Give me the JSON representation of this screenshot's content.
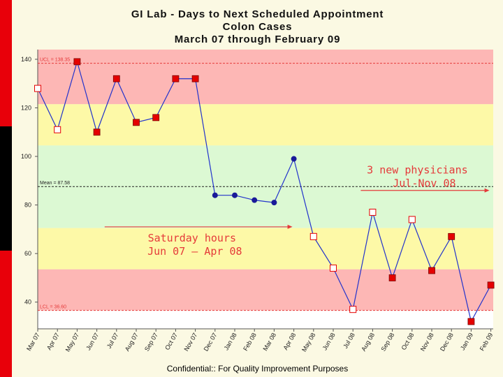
{
  "chart_data": {
    "type": "line",
    "title": "GI Lab - Days to Next Scheduled Appointment",
    "subtitle": "Colon Cases",
    "subtitle2": "March 07 through February 09",
    "footer": "Confidential::  For Quality Improvement Purposes",
    "xlabel": "",
    "ylabel": "",
    "ylim": [
      29,
      144
    ],
    "yticks": [
      "140",
      "120",
      "100",
      "80",
      "60",
      "40"
    ],
    "ytick_values": [
      140,
      120,
      100,
      80,
      60,
      40
    ],
    "categories": [
      "Mar 07",
      "Apr 07",
      "May 07",
      "Jun 07",
      "Jul 07",
      "Aug 07",
      "Sep 07",
      "Oct 07",
      "Nov 07",
      "Dec 07",
      "Jan 08",
      "Feb 08",
      "Mar 08",
      "Apr 08",
      "May 08",
      "Jun 08",
      "Jul 08",
      "Aug 08",
      "Sep 08",
      "Oct 08",
      "Nov 08",
      "Dec 08",
      "Jan 09",
      "Feb 09"
    ],
    "values": [
      128,
      111,
      139,
      110,
      132,
      114,
      116,
      132,
      132,
      84,
      84,
      82,
      81,
      99,
      67,
      54,
      37,
      77,
      50,
      74,
      53,
      67,
      32,
      47
    ],
    "markers": [
      "open",
      "open",
      "red",
      "red",
      "red",
      "red",
      "red",
      "red",
      "red",
      "dot",
      "dot",
      "dot",
      "dot",
      "dot",
      "open",
      "open",
      "open",
      "open",
      "red",
      "open",
      "red",
      "red",
      "red",
      "red"
    ],
    "zones": [
      {
        "from": 121.5,
        "to": 144,
        "color": "#fdb7b5"
      },
      {
        "from": 104.5,
        "to": 121.5,
        "color": "#fdf9a7"
      },
      {
        "from": 70.5,
        "to": 104.5,
        "color": "#dcf9d3"
      },
      {
        "from": 53.5,
        "to": 70.5,
        "color": "#fdf9a7"
      },
      {
        "from": 36.6,
        "to": 53.5,
        "color": "#fdb7b5"
      },
      {
        "from": 29,
        "to": 36.6,
        "color": "#ffffff"
      }
    ],
    "reference_lines": [
      {
        "label": "UCL = 138.35",
        "value": 138.35,
        "color": "#e53a3a"
      },
      {
        "label": "Mean = 87.58",
        "value": 87.58,
        "color": "#222222"
      },
      {
        "label": "LCL = 36.60",
        "value": 36.6,
        "color": "#e53a3a"
      }
    ],
    "annotations": [
      {
        "lines": [
          "Saturday hours",
          "Jun 07 – Apr 08"
        ],
        "from": "Jul 07",
        "to": "Apr 08",
        "value": 71
      },
      {
        "lines": [
          "3 new physicians",
          "Jul-Nov 08"
        ],
        "from": "Aug 08",
        "to": "Feb 09",
        "value": 86
      }
    ],
    "line_color": "#2233cc",
    "marker_red": "#e50000",
    "marker_dot": "#1a1a99",
    "annotation_color": "#e53a3a",
    "grid": false
  }
}
